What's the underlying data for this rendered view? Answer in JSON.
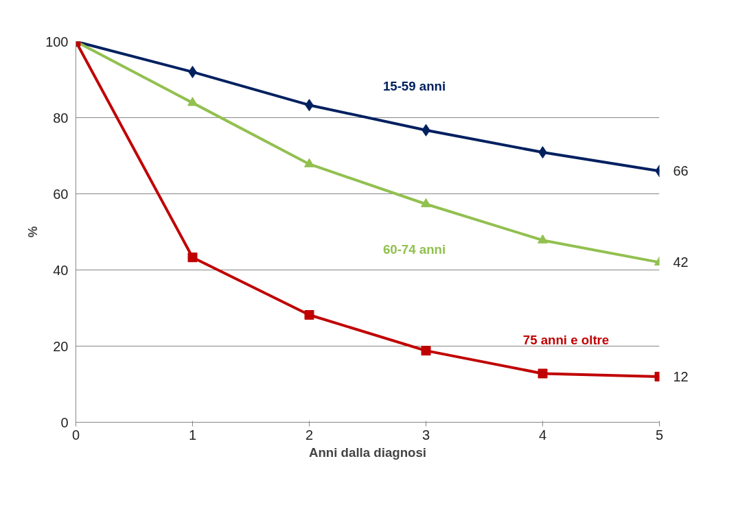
{
  "chart_data": {
    "type": "line",
    "xlabel": "Anni dalla diagnosi",
    "ylabel": "%",
    "x": [
      0,
      1,
      2,
      3,
      4,
      5
    ],
    "xlim": [
      0,
      5
    ],
    "xticks": [
      0,
      1,
      2,
      3,
      4,
      5
    ],
    "ylim": [
      0,
      100
    ],
    "yticks": [
      0,
      20,
      40,
      60,
      80,
      100
    ],
    "grid": "y",
    "series": [
      {
        "name": "15-59 anni",
        "color": "#002060",
        "marker": "diamond",
        "values": [
          100,
          92,
          83.3,
          76.7,
          70.9,
          66
        ],
        "value_labels": [
          null,
          null,
          null,
          null,
          null,
          "66"
        ]
      },
      {
        "name": "60-74 anni",
        "color": "#92c050",
        "marker": "triangle",
        "values": [
          100,
          83.9,
          67.8,
          57.3,
          47.8,
          42
        ],
        "value_labels": [
          null,
          null,
          null,
          null,
          null,
          "42"
        ]
      },
      {
        "name": "75 anni e oltre",
        "color": "#c00000",
        "marker": "square",
        "values": [
          100,
          43.3,
          28.2,
          18.8,
          12.8,
          12
        ],
        "value_labels": [
          null,
          null,
          null,
          null,
          null,
          "12"
        ]
      }
    ]
  }
}
